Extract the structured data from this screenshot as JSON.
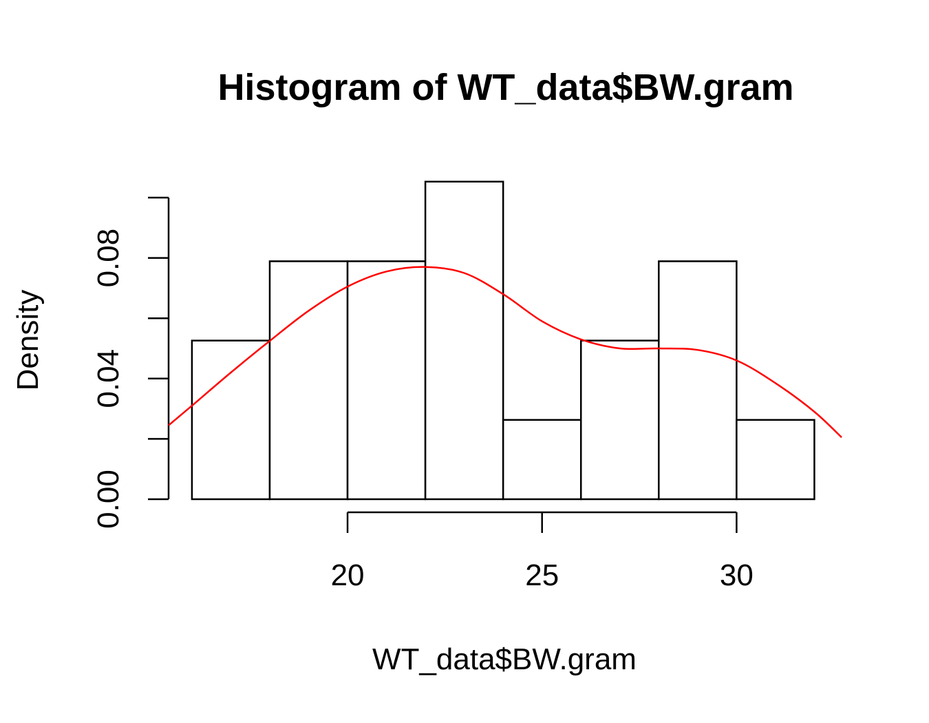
{
  "chart_data": {
    "type": "bar",
    "title": "Histogram of WT_data$BW.gram",
    "xlabel": "WT_data$BW.gram",
    "ylabel": "Density",
    "bin_edges": [
      16,
      18,
      20,
      22,
      24,
      26,
      28,
      30,
      32
    ],
    "values": [
      0.0526,
      0.0789,
      0.0789,
      0.1053,
      0.0263,
      0.0526,
      0.0789,
      0.0263
    ],
    "x_ticks": [
      20,
      25,
      30
    ],
    "x_tick_labels": [
      "20",
      "25",
      "30"
    ],
    "y_ticks": [
      0,
      0.02,
      0.04,
      0.06,
      0.08,
      0.1
    ],
    "y_tick_labels": [
      "0.00",
      "",
      "0.04",
      "",
      "0.08",
      ""
    ],
    "xlim": [
      15.4,
      32.7
    ],
    "ylim": [
      0,
      0.1
    ],
    "grid": false,
    "density_curve": {
      "color": "#ff0000",
      "x": [
        15.4,
        16.0,
        17.0,
        18.0,
        19.0,
        20.0,
        21.0,
        22.0,
        23.0,
        24.0,
        25.0,
        26.0,
        27.0,
        28.0,
        29.0,
        30.0,
        31.0,
        32.0,
        32.7
      ],
      "y": [
        0.0245,
        0.031,
        0.042,
        0.0525,
        0.0625,
        0.0705,
        0.0755,
        0.077,
        0.075,
        0.068,
        0.059,
        0.053,
        0.05,
        0.05,
        0.0495,
        0.046,
        0.0385,
        0.029,
        0.0205
      ]
    }
  }
}
